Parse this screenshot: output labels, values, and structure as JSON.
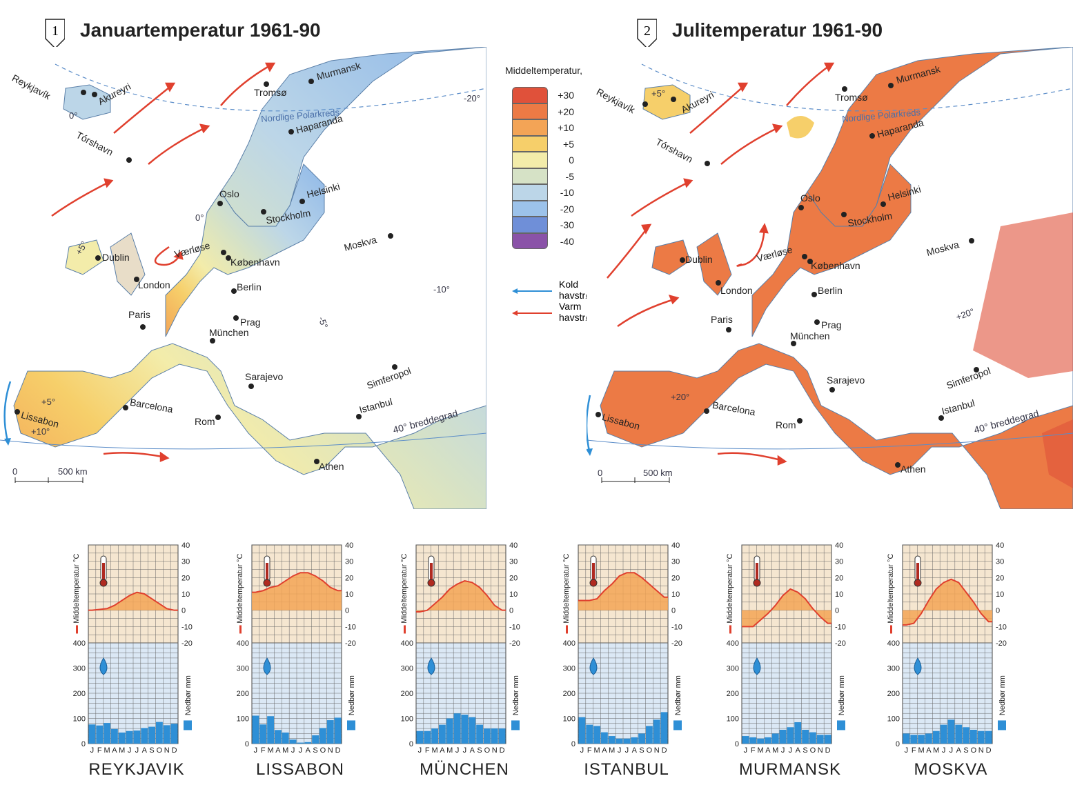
{
  "maps": [
    {
      "number": "1",
      "title": "Januartemperatur 1961-90",
      "cities": [
        {
          "name": "Reykjavík",
          "rot": -28
        },
        {
          "name": "Akureyri",
          "rot": -28
        },
        {
          "name": "Tórshavn",
          "rot": -28
        },
        {
          "name": "Tromsø",
          "rot": 0
        },
        {
          "name": "Murmansk",
          "rot": -15
        },
        {
          "name": "Haparanda",
          "rot": -15
        },
        {
          "name": "Oslo",
          "rot": 0
        },
        {
          "name": "Helsinki",
          "rot": -15
        },
        {
          "name": "Stockholm",
          "rot": -10
        },
        {
          "name": "Moskva",
          "rot": -15
        },
        {
          "name": "Dublin",
          "rot": 0
        },
        {
          "name": "Værløse",
          "rot": -15
        },
        {
          "name": "København",
          "rot": 0
        },
        {
          "name": "London",
          "rot": 0
        },
        {
          "name": "Berlin",
          "rot": 0
        },
        {
          "name": "Paris",
          "rot": 0
        },
        {
          "name": "Prag",
          "rot": 0
        },
        {
          "name": "München",
          "rot": 0
        },
        {
          "name": "Sarajevo",
          "rot": 0
        },
        {
          "name": "Simferopol",
          "rot": -20
        },
        {
          "name": "Istanbul",
          "rot": -15
        },
        {
          "name": "Barcelona",
          "rot": 10
        },
        {
          "name": "Lissabon",
          "rot": 15
        },
        {
          "name": "Rom",
          "rot": 0
        },
        {
          "name": "Athen",
          "rot": 0
        }
      ],
      "labels": [
        "Nordlige Polarkreds",
        "40° breddegrad",
        "0°",
        "0°",
        "-20°",
        "-10°",
        "-5°",
        "+5°",
        "+5°",
        "+10°"
      ],
      "scale": {
        "zero": "0",
        "dist": "500 km"
      }
    },
    {
      "number": "2",
      "title": "Julitemperatur 1961-90",
      "cities": [
        {
          "name": "Reykjavík",
          "rot": -28
        },
        {
          "name": "Akureyri",
          "rot": -28
        },
        {
          "name": "Tórshavn",
          "rot": -28
        },
        {
          "name": "Tromsø",
          "rot": 0
        },
        {
          "name": "Murmansk",
          "rot": -15
        },
        {
          "name": "Haparanda",
          "rot": -15
        },
        {
          "name": "Oslo",
          "rot": 0
        },
        {
          "name": "Helsinki",
          "rot": -15
        },
        {
          "name": "Stockholm",
          "rot": -10
        },
        {
          "name": "Moskva",
          "rot": -15
        },
        {
          "name": "Dublin",
          "rot": 0
        },
        {
          "name": "Værløse",
          "rot": -15
        },
        {
          "name": "København",
          "rot": 0
        },
        {
          "name": "London",
          "rot": 0
        },
        {
          "name": "Berlin",
          "rot": 0
        },
        {
          "name": "Paris",
          "rot": 0
        },
        {
          "name": "Prag",
          "rot": 0
        },
        {
          "name": "München",
          "rot": 0
        },
        {
          "name": "Sarajevo",
          "rot": 0
        },
        {
          "name": "Simferopol",
          "rot": -20
        },
        {
          "name": "Istanbul",
          "rot": -15
        },
        {
          "name": "Barcelona",
          "rot": 10
        },
        {
          "name": "Lissabon",
          "rot": 15
        },
        {
          "name": "Rom",
          "rot": 0
        },
        {
          "name": "Athen",
          "rot": 0
        }
      ],
      "labels": [
        "Nordlige Polarkreds",
        "40° breddegrad",
        "+5°",
        "+20°",
        "+20°"
      ],
      "scale": {
        "zero": "0",
        "dist": "500 km"
      }
    }
  ],
  "legend": {
    "title": "Middeltemperatur,  °C",
    "classes": [
      {
        "label": "+30",
        "color": "#e0513a"
      },
      {
        "label": "+20",
        "color": "#ec7a45"
      },
      {
        "label": "+10",
        "color": "#f3a456"
      },
      {
        "label": "+5",
        "color": "#f6cf6a"
      },
      {
        "label": "0",
        "color": "#f3ecaa"
      },
      {
        "label": "-5",
        "color": "#d6e2c6"
      },
      {
        "label": "-10",
        "color": "#bcd6e8"
      },
      {
        "label": "-20",
        "color": "#9cc2ea"
      },
      {
        "label": "-30",
        "color": "#6f8fd8"
      },
      {
        "label": "-40",
        "color": "#8a52a8"
      }
    ],
    "cold_current": "Kold\nhavstrøm",
    "warm_current": "Varm\nhavstrøm",
    "cold_color": "#2e8fd6",
    "warm_color": "#e0402e"
  },
  "climate_axis": {
    "temp_label": "Middeltemperatur  °C",
    "precip_label": "Nedbør mm",
    "temp_ticks": [
      "40",
      "30",
      "20",
      "10",
      "0",
      "-10",
      "-20"
    ],
    "precip_ticks": [
      "400",
      "300",
      "200",
      "100",
      "0"
    ],
    "months": "JFMAMJJASOND"
  },
  "chart_data": [
    {
      "type": "line+bar",
      "city": "REYKJAVIK",
      "temp": [
        0,
        0.5,
        1,
        3,
        6,
        9,
        11,
        10,
        7,
        4,
        1,
        0
      ],
      "precip": [
        76,
        72,
        82,
        58,
        44,
        50,
        52,
        62,
        67,
        86,
        73,
        79
      ]
    },
    {
      "type": "line+bar",
      "city": "LISSABON",
      "temp": [
        11,
        12,
        14,
        15,
        18,
        21,
        23,
        23,
        21,
        18,
        14,
        12
      ],
      "precip": [
        111,
        76,
        109,
        54,
        44,
        16,
        4,
        6,
        33,
        62,
        93,
        103
      ]
    },
    {
      "type": "line+bar",
      "city": "MÜNCHEN",
      "temp": [
        -1,
        0,
        4,
        8,
        13,
        16,
        18,
        17,
        14,
        9,
        3,
        0
      ],
      "precip": [
        50,
        50,
        60,
        75,
        100,
        120,
        115,
        105,
        75,
        60,
        60,
        60
      ]
    },
    {
      "type": "line+bar",
      "city": "ISTANBUL",
      "temp": [
        6,
        6,
        7,
        12,
        16,
        21,
        23,
        23,
        20,
        16,
        12,
        8
      ],
      "precip": [
        105,
        75,
        70,
        45,
        30,
        20,
        20,
        25,
        40,
        70,
        95,
        125
      ]
    },
    {
      "type": "line+bar",
      "city": "MURMANSK",
      "temp": [
        -10,
        -10,
        -6,
        -2,
        3,
        9,
        13,
        11,
        7,
        1,
        -4,
        -8
      ],
      "precip": [
        30,
        25,
        20,
        25,
        40,
        55,
        65,
        85,
        55,
        45,
        35,
        35
      ]
    },
    {
      "type": "line+bar",
      "city": "MOSKVA",
      "temp": [
        -9,
        -8,
        -2,
        6,
        13,
        17,
        19,
        17,
        11,
        5,
        -2,
        -7
      ],
      "precip": [
        40,
        35,
        35,
        40,
        50,
        75,
        95,
        75,
        65,
        55,
        50,
        50
      ]
    }
  ]
}
